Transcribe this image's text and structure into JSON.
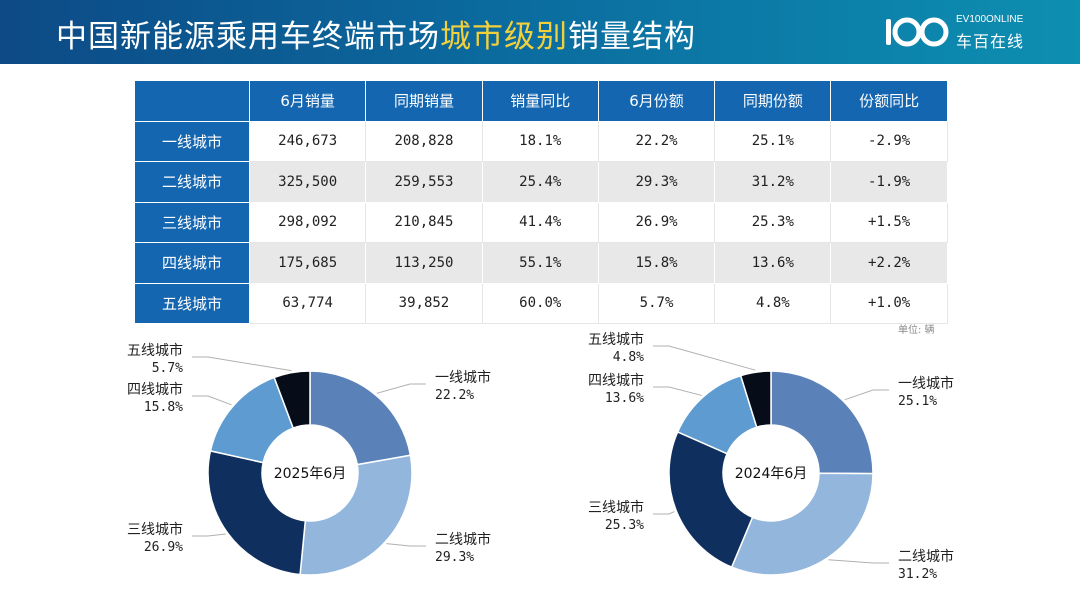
{
  "header": {
    "title_part1": "中国新能源乘用车终端市场",
    "title_highlight": "城市级别",
    "title_part2": "销量结构",
    "logo_top": "EV100ONLINE",
    "logo_cn": "车百在线"
  },
  "table": {
    "headers": [
      "",
      "6月销量",
      "同期销量",
      "销量同比",
      "6月份额",
      "同期份额",
      "份额同比"
    ],
    "rows": [
      {
        "name": "一线城市",
        "cells": [
          "246,673",
          "208,828",
          "18.1%",
          "22.2%",
          "25.1%",
          "-2.9%"
        ]
      },
      {
        "name": "二线城市",
        "cells": [
          "325,500",
          "259,553",
          "25.4%",
          "29.3%",
          "31.2%",
          "-1.9%"
        ]
      },
      {
        "name": "三线城市",
        "cells": [
          "298,092",
          "210,845",
          "41.4%",
          "26.9%",
          "25.3%",
          "+1.5%"
        ]
      },
      {
        "name": "四线城市",
        "cells": [
          "175,685",
          "113,250",
          "55.1%",
          "15.8%",
          "13.6%",
          "+2.2%"
        ]
      },
      {
        "name": "五线城市",
        "cells": [
          "63,774",
          "39,852",
          "60.0%",
          "5.7%",
          "4.8%",
          "+1.0%"
        ]
      }
    ],
    "unit": "单位: 辆"
  },
  "chart_data": [
    {
      "type": "pie",
      "center_label": "2025年6月",
      "categories": [
        "一线城市",
        "二线城市",
        "三线城市",
        "四线城市",
        "五线城市"
      ],
      "values": [
        22.2,
        29.3,
        26.9,
        15.8,
        5.7
      ],
      "value_labels": [
        "22.2%",
        "29.3%",
        "26.9%",
        "15.8%",
        "5.7%"
      ],
      "colors": [
        "#5b82b8",
        "#93b6dd",
        "#0f2f5f",
        "#5e9bd0",
        "#070d18"
      ]
    },
    {
      "type": "pie",
      "center_label": "2024年6月",
      "categories": [
        "一线城市",
        "二线城市",
        "三线城市",
        "四线城市",
        "五线城市"
      ],
      "values": [
        25.1,
        31.2,
        25.3,
        13.6,
        4.8
      ],
      "value_labels": [
        "25.1%",
        "31.2%",
        "25.3%",
        "13.6%",
        "4.8%"
      ],
      "colors": [
        "#5b82b8",
        "#93b6dd",
        "#0f2f5f",
        "#5e9bd0",
        "#070d18"
      ]
    }
  ]
}
